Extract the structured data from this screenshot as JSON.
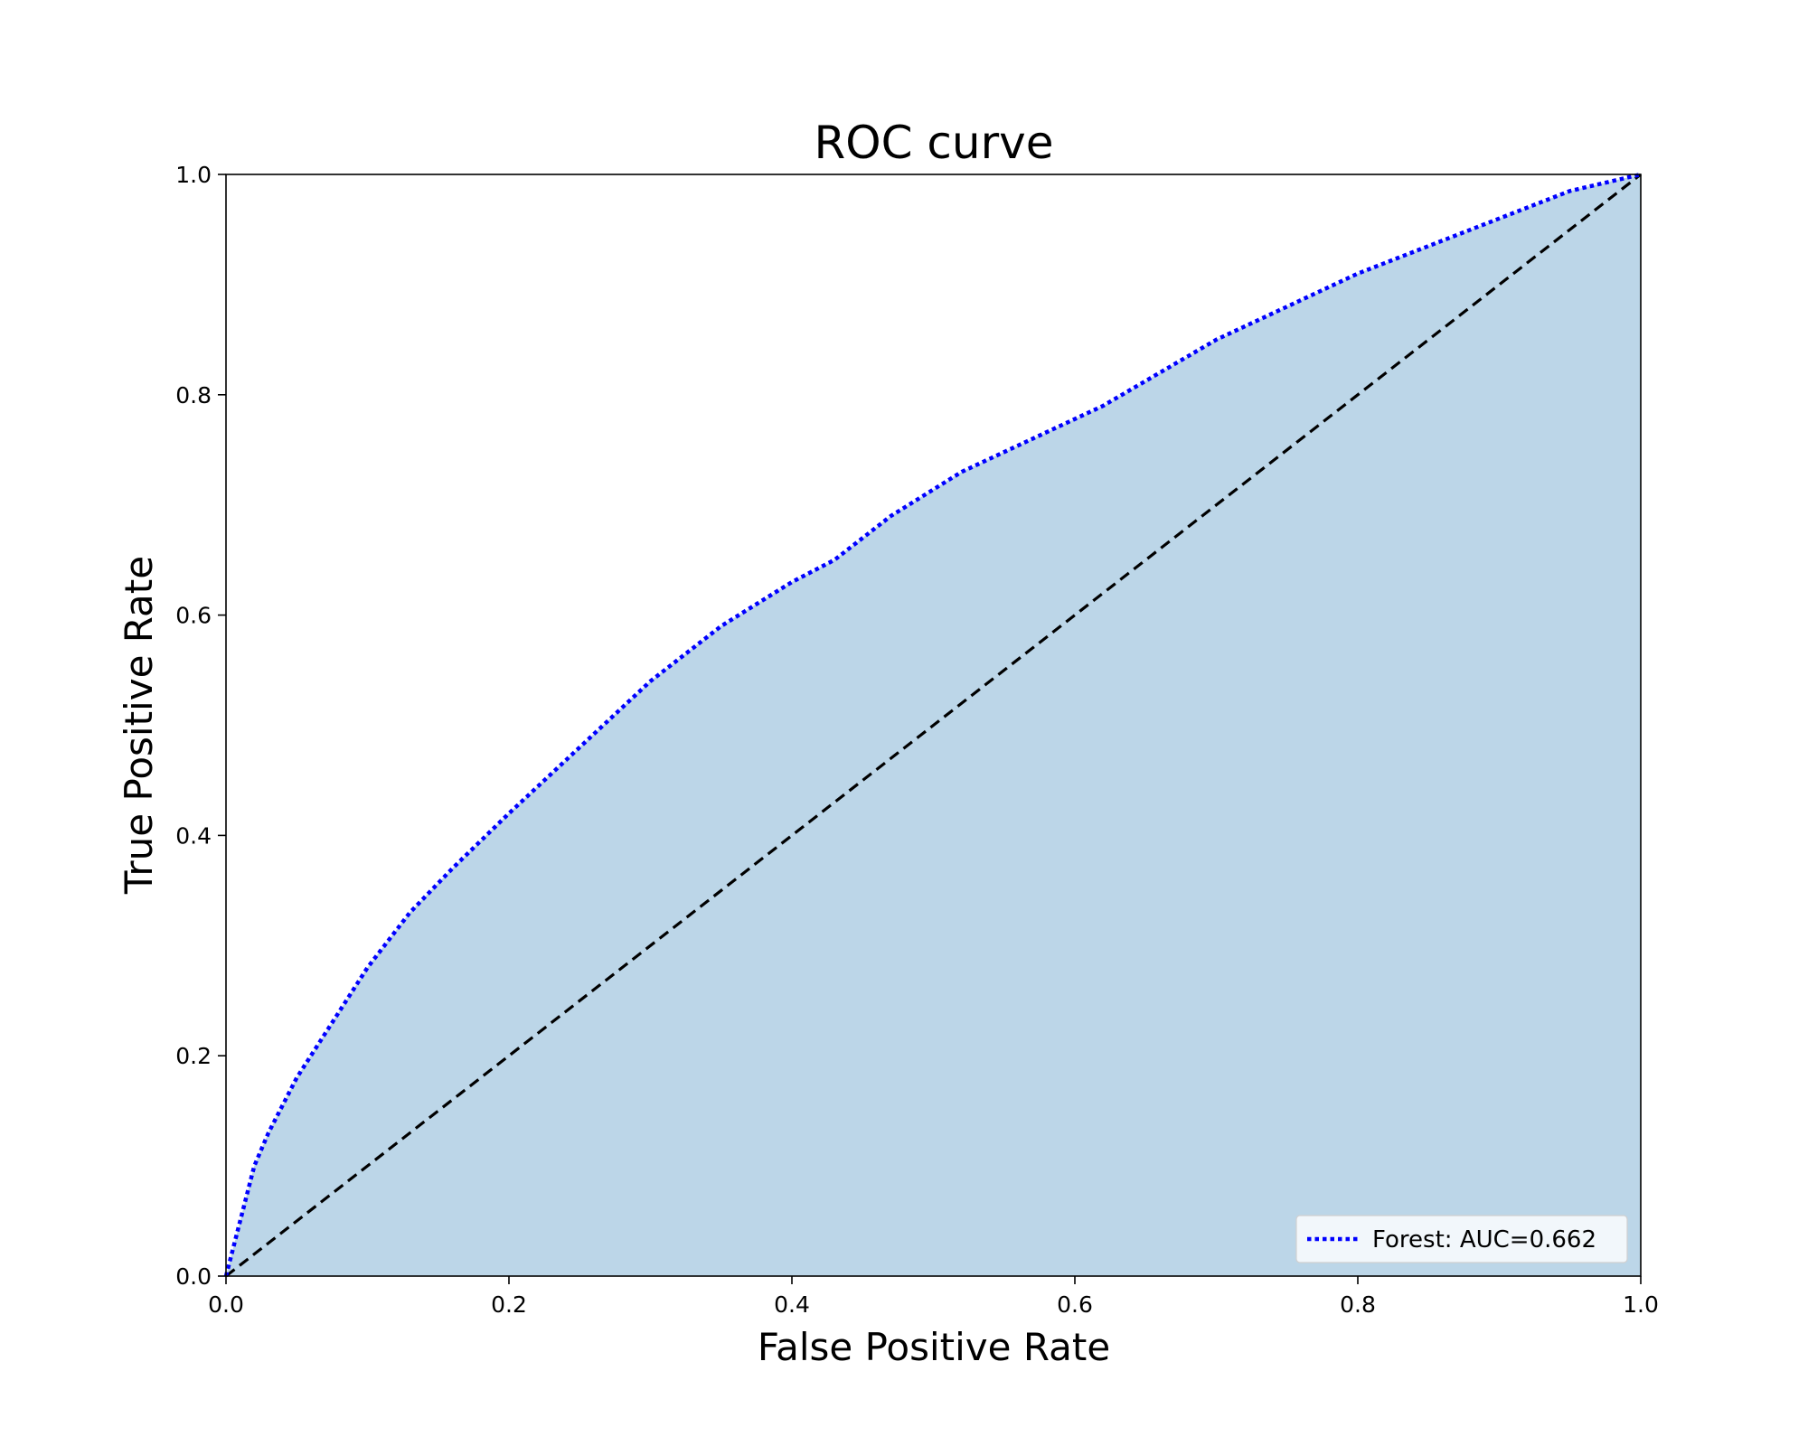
{
  "chart_data": {
    "type": "line",
    "title": "ROC curve",
    "xlabel": "False Positive Rate",
    "ylabel": "True Positive Rate",
    "xlim": [
      0.0,
      1.0
    ],
    "ylim": [
      0.0,
      1.0
    ],
    "xticks": [
      "0.0",
      "0.2",
      "0.4",
      "0.6",
      "0.8",
      "1.0"
    ],
    "yticks": [
      "0.0",
      "0.2",
      "0.4",
      "0.6",
      "0.8",
      "1.0"
    ],
    "grid": false,
    "legend_position": "lower-right",
    "fill_under_curve": true,
    "series": [
      {
        "name": "Forest: AUC=0.662",
        "style": "dotted",
        "color": "#0000ff",
        "x": [
          0.0,
          0.01,
          0.02,
          0.03,
          0.05,
          0.07,
          0.1,
          0.13,
          0.16,
          0.2,
          0.25,
          0.3,
          0.35,
          0.4,
          0.43,
          0.47,
          0.52,
          0.57,
          0.62,
          0.7,
          0.8,
          0.88,
          0.95,
          1.0
        ],
        "y": [
          0.0,
          0.05,
          0.1,
          0.13,
          0.18,
          0.22,
          0.28,
          0.33,
          0.37,
          0.42,
          0.48,
          0.54,
          0.59,
          0.63,
          0.65,
          0.69,
          0.73,
          0.76,
          0.79,
          0.85,
          0.91,
          0.95,
          0.985,
          1.0
        ]
      },
      {
        "name": "",
        "style": "dashed",
        "color": "#000000",
        "x": [
          0.0,
          1.0
        ],
        "y": [
          0.0,
          1.0
        ]
      }
    ],
    "fill_color": "#bcd6e8"
  }
}
